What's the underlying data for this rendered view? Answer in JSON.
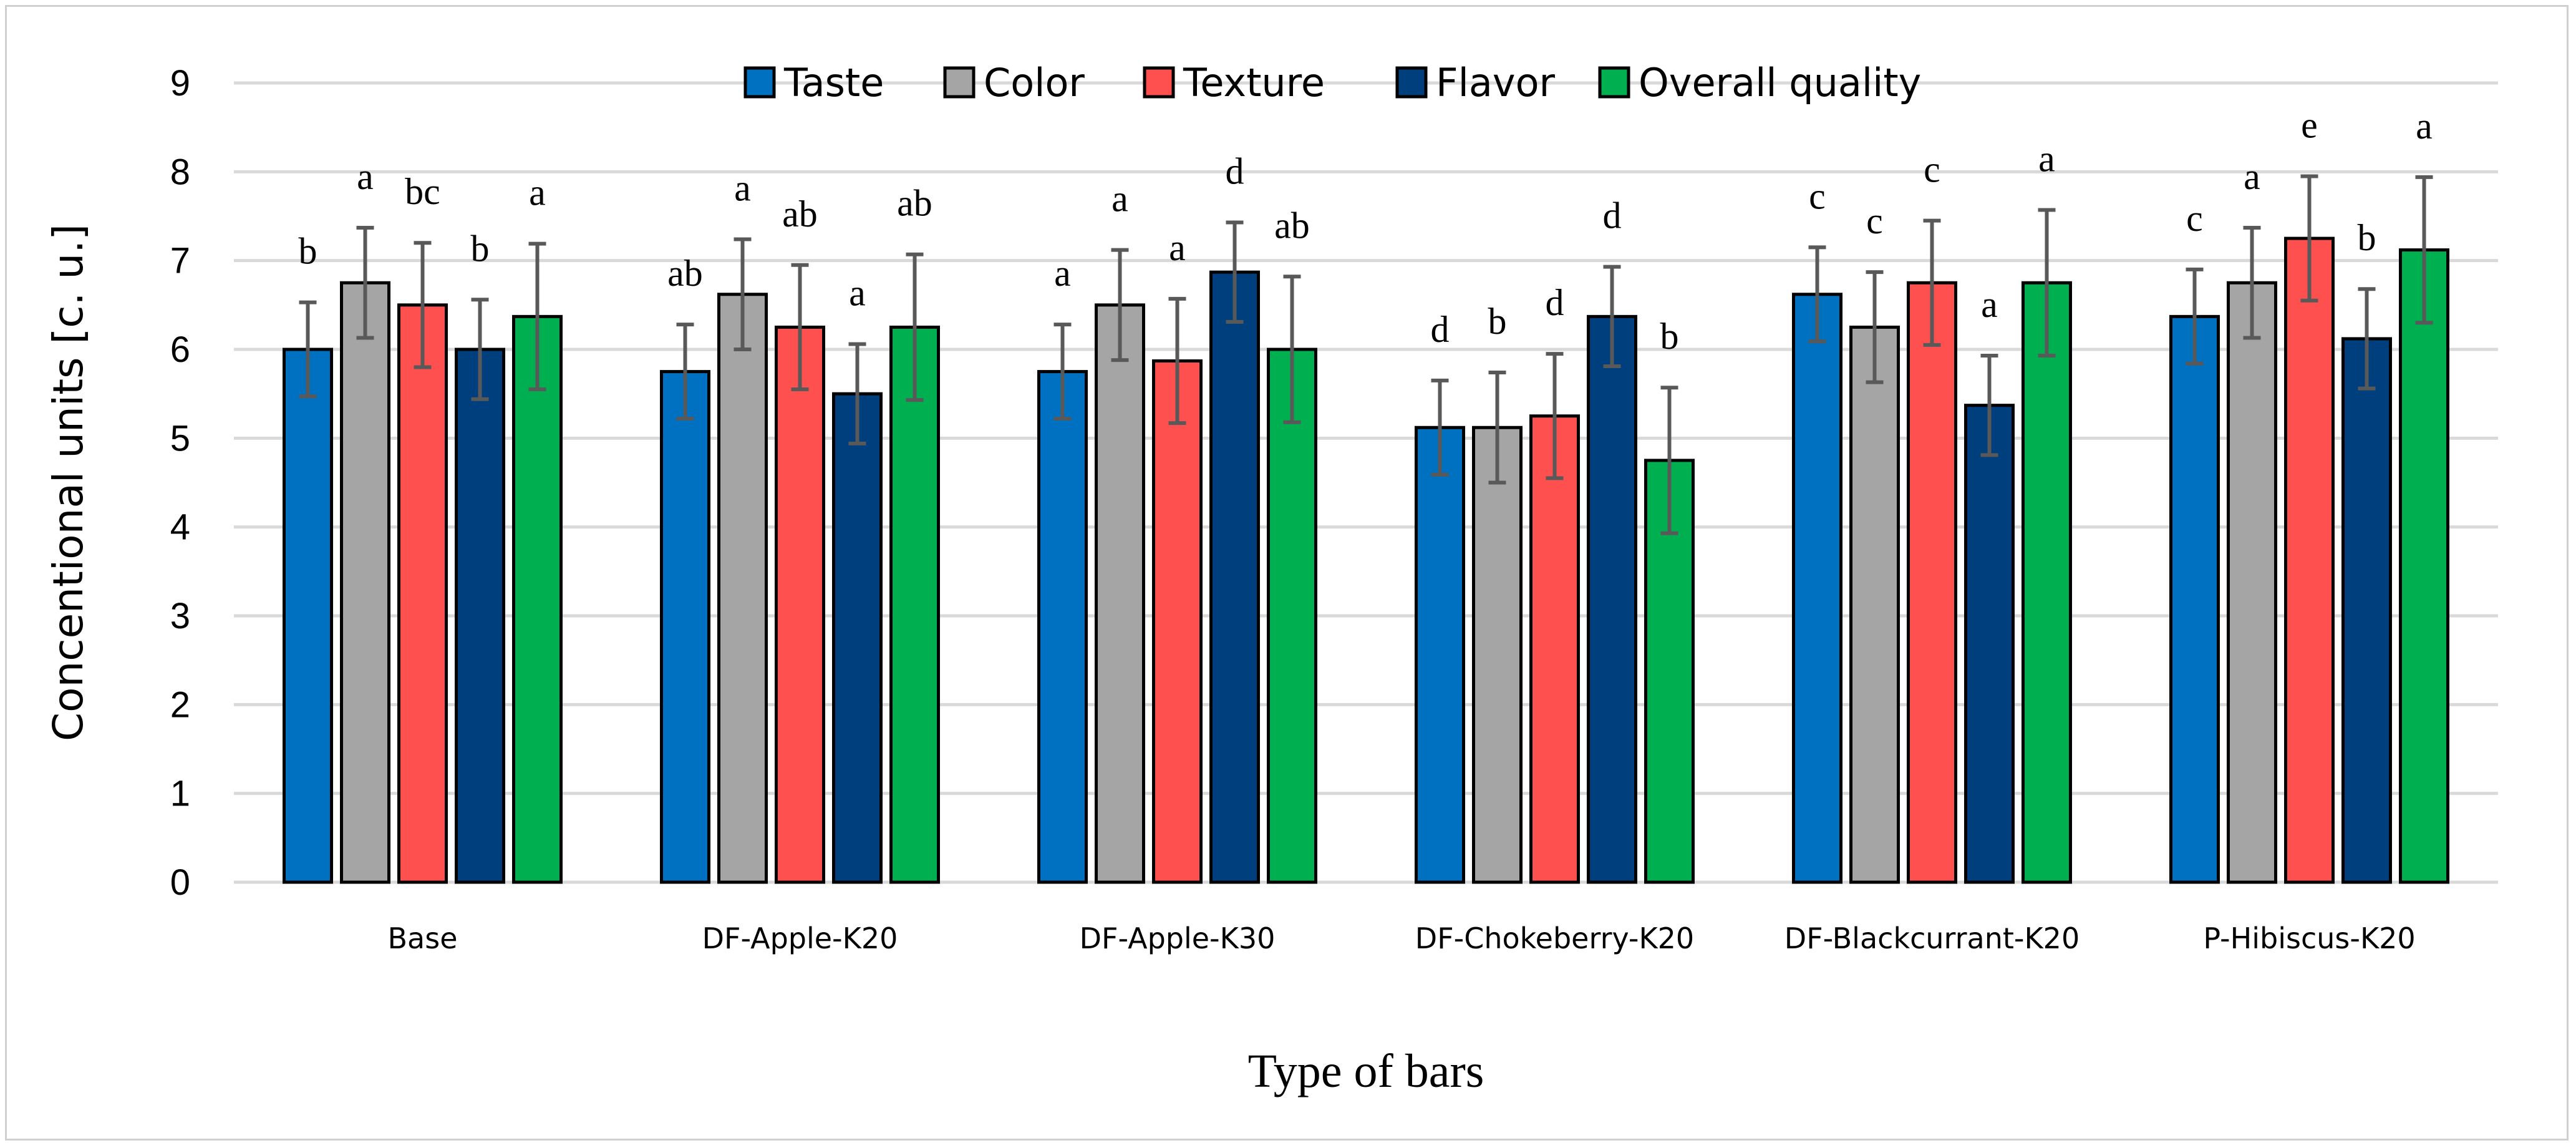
{
  "chart_data": {
    "type": "bar",
    "title": "",
    "xlabel": "Type of bars",
    "ylabel": "Concentional units [c. u.]",
    "ylim": [
      0,
      9
    ],
    "yticks": [
      "0",
      "1",
      "2",
      "3",
      "4",
      "5",
      "6",
      "7",
      "8",
      "9"
    ],
    "grid": true,
    "legend_position": "top",
    "categories": [
      "Base",
      "DF-Apple-K20",
      "DF-Apple-K30",
      "DF-Chokeberry-K20",
      "DF-Blackcurrant-K20",
      "P-Hibiscus-K20"
    ],
    "series": [
      {
        "name": "Taste",
        "color": "#0070C0",
        "values": [
          6.0,
          5.75,
          5.75,
          5.12,
          6.62,
          6.37
        ],
        "errors": [
          0.53,
          0.53,
          0.53,
          0.53,
          0.53,
          0.53
        ],
        "letters": [
          "b",
          "ab",
          "a",
          "d",
          "c",
          "c"
        ]
      },
      {
        "name": "Color",
        "color": "#A5A5A5",
        "values": [
          6.75,
          6.62,
          6.5,
          5.12,
          6.25,
          6.75
        ],
        "errors": [
          0.62,
          0.62,
          0.62,
          0.62,
          0.62,
          0.62
        ],
        "letters": [
          "a",
          "a",
          "a",
          "b",
          "c",
          "a"
        ]
      },
      {
        "name": "Texture",
        "color": "#FF5050",
        "values": [
          6.5,
          6.25,
          5.87,
          5.25,
          6.75,
          7.25
        ],
        "errors": [
          0.7,
          0.7,
          0.7,
          0.7,
          0.7,
          0.7
        ],
        "letters": [
          "bc",
          "ab",
          "a",
          "d",
          "c",
          "e"
        ]
      },
      {
        "name": "Flavor",
        "color": "#003F7D",
        "values": [
          6.0,
          5.5,
          6.87,
          6.37,
          5.37,
          6.12
        ],
        "errors": [
          0.56,
          0.56,
          0.56,
          0.56,
          0.56,
          0.56
        ],
        "letters": [
          "b",
          "a",
          "d",
          "d",
          "a",
          "b"
        ]
      },
      {
        "name": "Overall quality",
        "color": "#00B050",
        "values": [
          6.37,
          6.25,
          6.0,
          4.75,
          6.75,
          7.12
        ],
        "errors": [
          0.82,
          0.82,
          0.82,
          0.82,
          0.82,
          0.82
        ],
        "letters": [
          "a",
          "ab",
          "ab",
          "b",
          "a",
          "a"
        ]
      }
    ]
  }
}
